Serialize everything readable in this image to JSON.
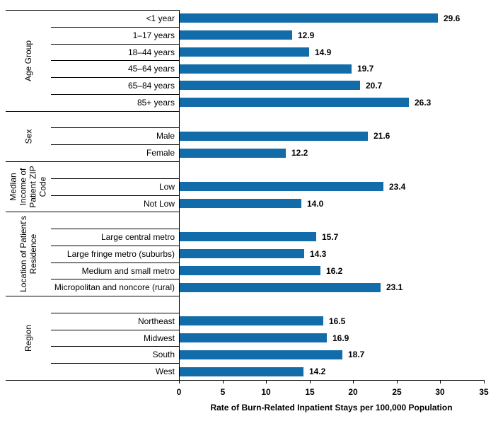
{
  "chart_data": {
    "type": "bar",
    "orientation": "horizontal",
    "xlabel": "Rate of Burn-Related Inpatient Stays per 100,000 Population",
    "xlim": [
      0,
      35
    ],
    "x_ticks": [
      0,
      5,
      10,
      15,
      20,
      25,
      30,
      35
    ],
    "grid": false,
    "legend": "none",
    "bar_color": "#126CAA",
    "line_color": "#000000",
    "value_label_decimals": 1,
    "groups": [
      {
        "label": "Age Group",
        "label_lines": [
          "Age Group"
        ],
        "leading_spacer": false,
        "categories": [
          "<1 year",
          "1–17 years",
          "18–44 years",
          "45–64 years",
          "65–84 years",
          "85+ years"
        ],
        "values": [
          29.6,
          12.9,
          14.9,
          19.7,
          20.7,
          26.3
        ]
      },
      {
        "label": "Sex",
        "label_lines": [
          "Sex"
        ],
        "leading_spacer": true,
        "categories": [
          "Male",
          "Female"
        ],
        "values": [
          21.6,
          12.2
        ]
      },
      {
        "label": "Median Income of Patient ZIP Code",
        "label_lines": [
          "Median",
          "Income of",
          "Patient ZIP",
          "Code"
        ],
        "leading_spacer": true,
        "categories": [
          "Low",
          "Not Low"
        ],
        "values": [
          23.4,
          14.0
        ]
      },
      {
        "label": "Location of Patient's Residence",
        "label_lines": [
          "Location of Patient's",
          "Residence"
        ],
        "leading_spacer": true,
        "categories": [
          "Large central metro",
          "Large fringe metro (suburbs)",
          "Medium and small metro",
          "Micropolitan and noncore (rural)"
        ],
        "values": [
          15.7,
          14.3,
          16.2,
          23.1
        ]
      },
      {
        "label": "Region",
        "label_lines": [
          "Region"
        ],
        "leading_spacer": true,
        "categories": [
          "Northeast",
          "Midwest",
          "South",
          "West"
        ],
        "values": [
          16.5,
          16.9,
          18.7,
          14.2
        ]
      }
    ]
  }
}
